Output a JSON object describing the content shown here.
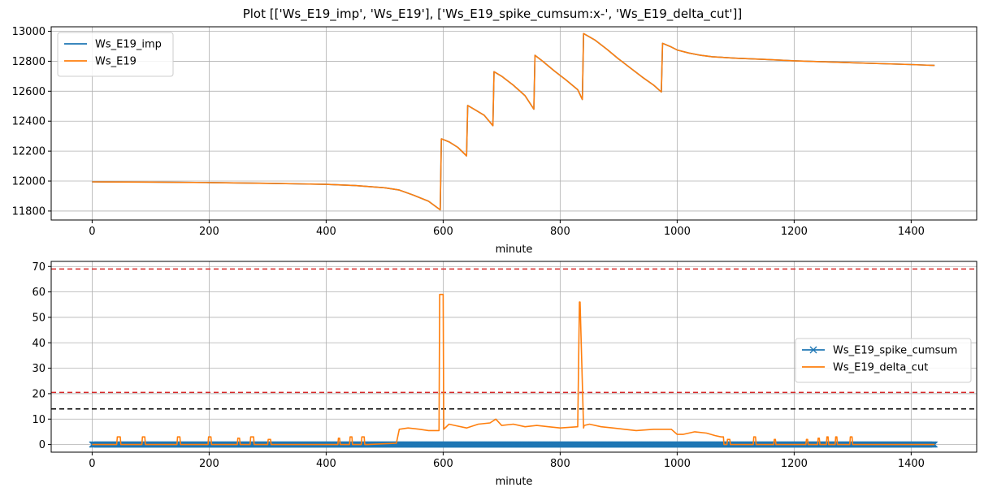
{
  "figure_title": "Plot [['Ws_E19_imp', 'Ws_E19'], ['Ws_E19_spike_cumsum:x-', 'Ws_E19_delta_cut']]",
  "chart_data": [
    {
      "type": "line",
      "xlabel": "minute",
      "ylabel": "",
      "xlim": [
        -70,
        1512
      ],
      "ylim": [
        11740,
        13030
      ],
      "xticks": [
        0,
        200,
        400,
        600,
        800,
        1000,
        1200,
        1400
      ],
      "yticks": [
        11800,
        12000,
        12200,
        12400,
        12600,
        12800,
        13000
      ],
      "grid": true,
      "legend_position": "top-left",
      "series": [
        {
          "name": "Ws_E19_imp",
          "color": "#1f77b4",
          "x": [
            0,
            100,
            200,
            300,
            400,
            450,
            500,
            525,
            550,
            575,
            595,
            597,
            610,
            625,
            640,
            642,
            655,
            670,
            685,
            687,
            700,
            720,
            740,
            755,
            757,
            770,
            790,
            810,
            830,
            838,
            840,
            860,
            880,
            900,
            920,
            940,
            960,
            973,
            975,
            990,
            1000,
            1020,
            1040,
            1060,
            1100,
            1150,
            1200,
            1300,
            1400,
            1440
          ],
          "y": [
            11995,
            11993,
            11990,
            11985,
            11978,
            11970,
            11955,
            11940,
            11905,
            11865,
            11808,
            12282,
            12262,
            12225,
            12168,
            12505,
            12475,
            12440,
            12370,
            12730,
            12700,
            12640,
            12570,
            12480,
            12840,
            12800,
            12735,
            12675,
            12610,
            12545,
            12985,
            12940,
            12880,
            12815,
            12755,
            12695,
            12640,
            12595,
            12920,
            12895,
            12875,
            12855,
            12840,
            12830,
            12820,
            12812,
            12803,
            12790,
            12778,
            12772
          ]
        },
        {
          "name": "Ws_E19",
          "color": "#ff7f0e",
          "x": [
            0,
            100,
            200,
            300,
            400,
            450,
            500,
            525,
            550,
            575,
            595,
            597,
            610,
            625,
            640,
            642,
            655,
            670,
            685,
            687,
            700,
            720,
            740,
            755,
            757,
            770,
            790,
            810,
            830,
            838,
            840,
            860,
            880,
            900,
            920,
            940,
            960,
            973,
            975,
            990,
            1000,
            1020,
            1040,
            1060,
            1100,
            1150,
            1200,
            1300,
            1400,
            1440
          ],
          "y": [
            11995,
            11993,
            11990,
            11985,
            11978,
            11970,
            11955,
            11940,
            11905,
            11865,
            11808,
            12282,
            12262,
            12225,
            12168,
            12505,
            12475,
            12440,
            12370,
            12730,
            12700,
            12640,
            12570,
            12480,
            12840,
            12800,
            12735,
            12675,
            12610,
            12545,
            12985,
            12940,
            12880,
            12815,
            12755,
            12695,
            12640,
            12595,
            12920,
            12895,
            12875,
            12855,
            12840,
            12830,
            12820,
            12812,
            12803,
            12790,
            12778,
            12772
          ]
        }
      ]
    },
    {
      "type": "line",
      "xlabel": "minute",
      "ylabel": "",
      "xlim": [
        -70,
        1512
      ],
      "ylim": [
        -3,
        72
      ],
      "xticks": [
        0,
        200,
        400,
        600,
        800,
        1000,
        1200,
        1400
      ],
      "yticks": [
        0,
        10,
        20,
        30,
        40,
        50,
        60,
        70
      ],
      "grid": true,
      "legend_position": "center-right",
      "reference_lines": [
        {
          "y": 69,
          "color": "#d62728",
          "style": "dashed"
        },
        {
          "y": 20.5,
          "color": "#d62728",
          "style": "dashed"
        },
        {
          "y": 14,
          "color": "#000000",
          "style": "dashed"
        }
      ],
      "series": [
        {
          "name": "Ws_E19_spike_cumsum",
          "color": "#1f77b4",
          "marker": "x",
          "note_values": "value 0 for all minutes 0 to 1440 (one point per minute)",
          "x": [
            0,
            1440
          ],
          "y": [
            0,
            0
          ]
        },
        {
          "name": "Ws_E19_delta_cut",
          "color": "#ff7f0e",
          "x": [
            0,
            42,
            43,
            48,
            49,
            85,
            86,
            90,
            91,
            145,
            146,
            150,
            151,
            198,
            199,
            203,
            204,
            248,
            249,
            252,
            253,
            270,
            271,
            276,
            277,
            300,
            301,
            305,
            306,
            420,
            421,
            423,
            424,
            440,
            441,
            444,
            445,
            460,
            461,
            465,
            466,
            470,
            471,
            520,
            525,
            540,
            560,
            575,
            593,
            594,
            600,
            601,
            610,
            620,
            640,
            660,
            680,
            690,
            700,
            720,
            740,
            760,
            780,
            800,
            830,
            833,
            834,
            840,
            841,
            850,
            870,
            890,
            910,
            930,
            960,
            990,
            1000,
            1010,
            1030,
            1050,
            1065,
            1075,
            1079,
            1080,
            1085,
            1086,
            1090,
            1091,
            1130,
            1131,
            1134,
            1135,
            1165,
            1166,
            1168,
            1169,
            1220,
            1221,
            1223,
            1224,
            1240,
            1241,
            1243,
            1244,
            1255,
            1256,
            1258,
            1259,
            1270,
            1271,
            1273,
            1274,
            1295,
            1296,
            1299,
            1300,
            1440
          ],
          "y": [
            0,
            0,
            3,
            3,
            0,
            0,
            3,
            3,
            0,
            0,
            3,
            3,
            0,
            0,
            3,
            3,
            0,
            0,
            2.5,
            2.5,
            0,
            0,
            3,
            3,
            0,
            0,
            2,
            2,
            0,
            0,
            2.5,
            2.5,
            0,
            0,
            3,
            3,
            0,
            0,
            3,
            3,
            0,
            0,
            0,
            0.5,
            6,
            6.5,
            6,
            5.5,
            5.5,
            59,
            59,
            6,
            8,
            7.5,
            6.5,
            8,
            8.5,
            10,
            7.5,
            8,
            7,
            7.5,
            7,
            6.5,
            7,
            56,
            56,
            6.5,
            7.5,
            8,
            7,
            6.5,
            6,
            5.5,
            6,
            6,
            4,
            4,
            5,
            4.5,
            3.5,
            3,
            3,
            0,
            0,
            2,
            2,
            0,
            0,
            3,
            3,
            0,
            0,
            2,
            2,
            0,
            0,
            2,
            2,
            0,
            0,
            2.5,
            2.5,
            0,
            0,
            3,
            3,
            0,
            0,
            3,
            3,
            0,
            0,
            3,
            3,
            0,
            0
          ]
        }
      ]
    }
  ]
}
